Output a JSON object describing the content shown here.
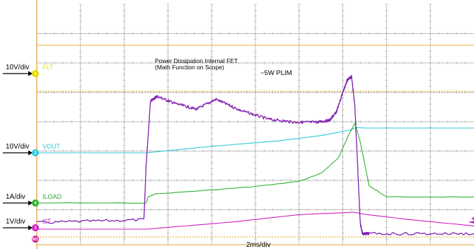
{
  "chart_data": {
    "type": "line",
    "title": "",
    "xlabel": "2ms/div",
    "ylabel": "",
    "x_unit": "ms",
    "x_range": [
      0,
      20
    ],
    "grid": true,
    "colors": {
      "grid": "#a8a8a8",
      "frame": "#e0a030",
      "trigger": "#e8b030",
      "plim_ref": "#e0a000"
    },
    "annotations": {
      "power_line1": "Power Dissipation Internal FET",
      "power_line2": "(Math Function on Scope)",
      "plim": "~5W PLIM"
    },
    "channels": [
      {
        "marker": "1",
        "name": "FLT",
        "scale": "10V/div",
        "color": "#e8e000",
        "marker_color": "#e8d800"
      },
      {
        "marker": "2",
        "name": "VOUT",
        "scale": "10V/div",
        "color": "#30c8d8",
        "marker_color": "#30c8d8"
      },
      {
        "marker": "4",
        "name": "ILOAD",
        "scale": "1A/div",
        "color": "#30b030",
        "marker_color": "#30b030"
      },
      {
        "marker": "3",
        "name": "CT",
        "scale": "1V/div",
        "color": "#d020c0",
        "marker_color": "#d020c0"
      },
      {
        "marker": "M1",
        "name": "",
        "scale": "",
        "color": "#8020b0",
        "marker_color": "#d02090"
      }
    ],
    "series": [
      {
        "name": "FLT",
        "color": "#e8e000",
        "x": [
          0,
          20
        ],
        "y": [
          38.5,
          38.5
        ]
      },
      {
        "name": "VOUT",
        "color": "#30c8d8",
        "x": [
          0,
          5,
          8,
          11,
          13,
          14.3,
          14.6,
          15,
          20
        ],
        "y": [
          0,
          0,
          1.2,
          2.2,
          3.2,
          4.2,
          4.7,
          4.6,
          4.6
        ]
      },
      {
        "name": "ILOAD",
        "color": "#30b030",
        "x": [
          0,
          5.0,
          5.1,
          5.4,
          8,
          10,
          12,
          13,
          13.8,
          14.3,
          14.55,
          14.8,
          15.2,
          16,
          20
        ],
        "y": [
          0,
          0,
          0.35,
          0.52,
          0.75,
          0.95,
          1.25,
          1.7,
          2.6,
          4.0,
          4.6,
          3.5,
          1.0,
          0.35,
          0.35
        ]
      },
      {
        "name": "CT",
        "color": "#d020c0",
        "x": [
          0,
          5.0,
          9,
          12,
          14.5,
          15.0,
          17,
          20
        ],
        "y": [
          0,
          0,
          0.45,
          0.9,
          1.05,
          0.92,
          0.6,
          0.2
        ]
      },
      {
        "name": "M1",
        "color": "#8020b0",
        "x": [
          0,
          4.9,
          5.0,
          5.2,
          5.5,
          6.3,
          7.3,
          8.2,
          9.3,
          10.6,
          11.8,
          12.8,
          13.4,
          13.7,
          14.0,
          14.2,
          14.4,
          14.55,
          14.8,
          14.9,
          15.2,
          20
        ],
        "y": [
          -0.35,
          -0.2,
          2.5,
          5.75,
          6.0,
          5.65,
          5.35,
          5.85,
          5.3,
          4.85,
          4.7,
          4.7,
          4.8,
          5.2,
          6.2,
          6.8,
          7.0,
          5.5,
          -0.4,
          -0.9,
          -0.9,
          -0.9
        ]
      }
    ]
  }
}
